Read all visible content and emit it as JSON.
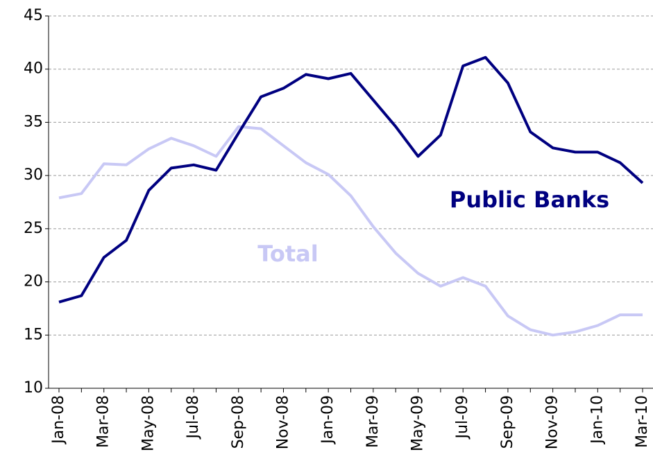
{
  "chart_data": {
    "type": "line",
    "categories": [
      "Jan-08",
      null,
      "Mar-08",
      null,
      "May-08",
      null,
      "Jul-08",
      null,
      "Sep-08",
      null,
      "Nov-08",
      null,
      "Jan-09",
      null,
      "Mar-09",
      null,
      "May-09",
      null,
      "Jul-09",
      null,
      "Sep-09",
      null,
      "Nov-09",
      null,
      "Jan-10",
      null,
      "Mar-10"
    ],
    "series": [
      {
        "name": "Public Banks",
        "color": "#000080",
        "values": [
          18.1,
          18.7,
          22.3,
          23.9,
          28.6,
          30.7,
          31.0,
          30.5,
          34.0,
          37.4,
          38.2,
          39.5,
          39.1,
          39.6,
          37.1,
          34.6,
          31.8,
          33.8,
          40.3,
          41.1,
          38.7,
          34.1,
          32.6,
          32.2,
          32.2,
          31.2,
          29.3
        ]
      },
      {
        "name": "Total",
        "color": "#c8c8f5",
        "values": [
          27.9,
          28.3,
          31.1,
          31.0,
          32.5,
          33.5,
          32.8,
          31.8,
          34.6,
          34.4,
          32.8,
          31.2,
          30.1,
          28.1,
          25.2,
          22.7,
          20.8,
          19.6,
          20.4,
          19.6,
          16.8,
          15.5,
          15.0,
          15.3,
          15.9,
          16.9,
          16.9
        ]
      }
    ],
    "ylim": [
      10,
      45
    ],
    "yticks": [
      10,
      15,
      20,
      25,
      30,
      35,
      40,
      45
    ],
    "grid": true
  }
}
